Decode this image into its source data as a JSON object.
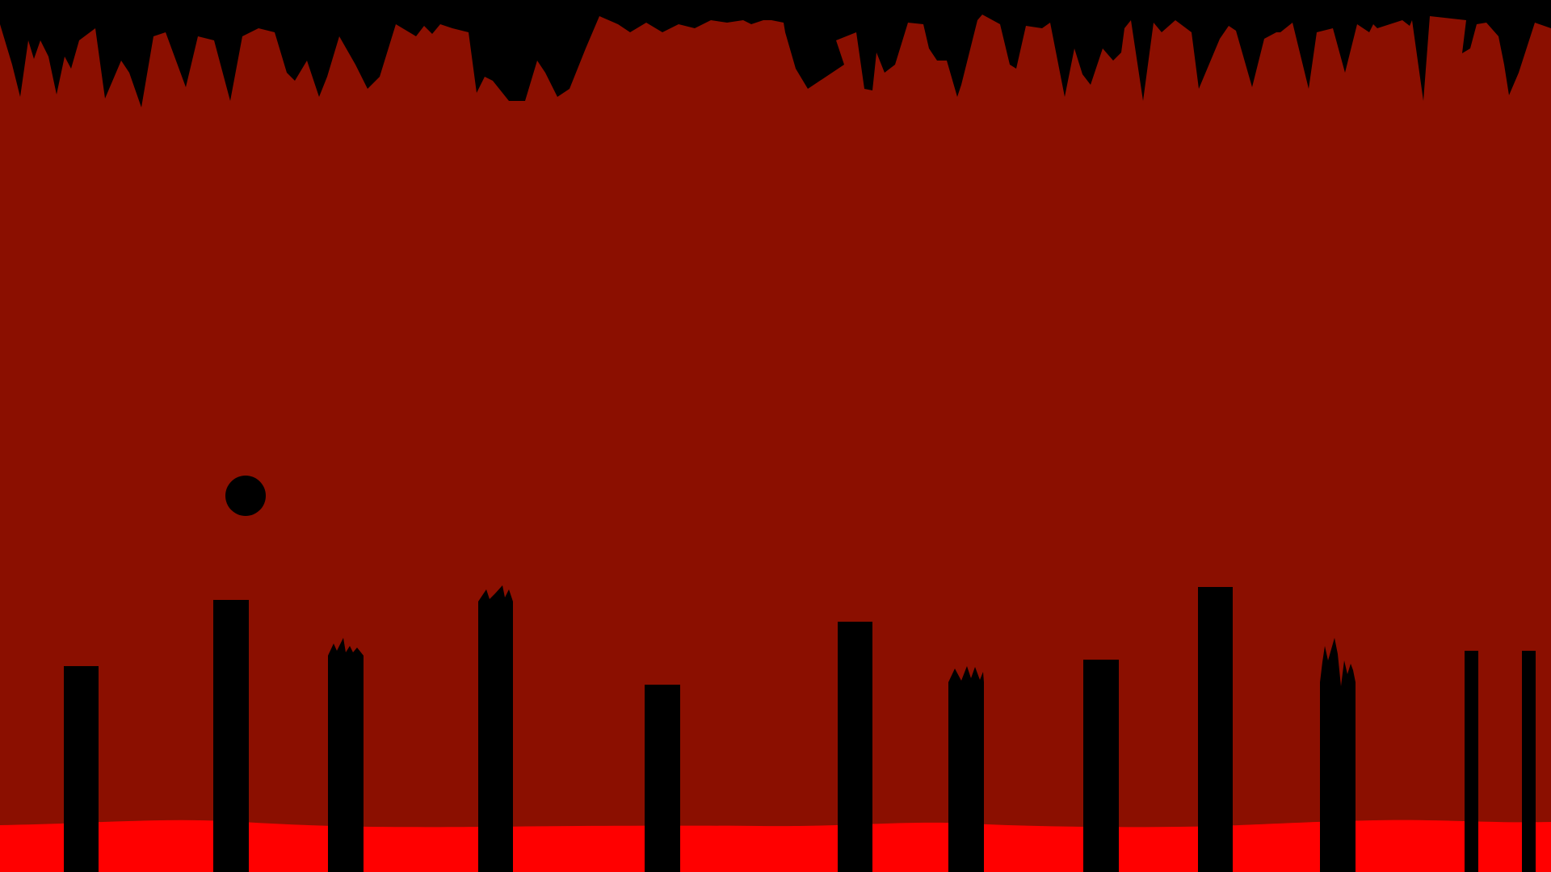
{
  "game": {
    "colors": {
      "background": "#8B0F00",
      "lava": "#FF0000",
      "silhouette": "#000000"
    }
  }
}
